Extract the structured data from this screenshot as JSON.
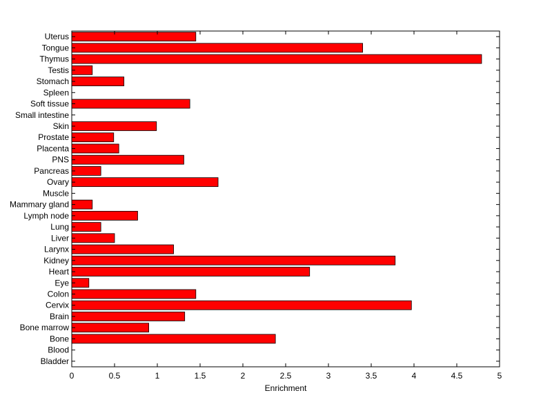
{
  "chart_data": {
    "type": "bar",
    "orientation": "horizontal",
    "title": "",
    "xlabel": "Enrichment",
    "ylabel": "",
    "xlim": [
      0,
      5
    ],
    "xticks": [
      "0",
      "0.5",
      "1",
      "1.5",
      "2",
      "2.5",
      "3",
      "3.5",
      "4",
      "4.5",
      "5"
    ],
    "grid": false,
    "legend": "none",
    "categories": [
      "Bladder",
      "Blood",
      "Bone",
      "Bone marrow",
      "Brain",
      "Cervix",
      "Colon",
      "Eye",
      "Heart",
      "Kidney",
      "Larynx",
      "Liver",
      "Lung",
      "Lymph node",
      "Mammary gland",
      "Muscle",
      "Ovary",
      "Pancreas",
      "PNS",
      "Placenta",
      "Prostate",
      "Skin",
      "Small intestine",
      "Soft tissue",
      "Spleen",
      "Stomach",
      "Testis",
      "Thymus",
      "Tongue",
      "Uterus"
    ],
    "values": [
      0,
      0,
      2.38,
      0.9,
      1.32,
      3.97,
      1.45,
      0.2,
      2.78,
      3.78,
      1.19,
      0.5,
      0.34,
      0.77,
      0.24,
      0,
      1.71,
      0.34,
      1.31,
      0.55,
      0.49,
      0.99,
      0,
      1.38,
      0,
      0.61,
      0.24,
      4.79,
      3.4,
      1.45
    ],
    "bar_color": "#ff0000",
    "bar_edge_color": "#000000"
  }
}
